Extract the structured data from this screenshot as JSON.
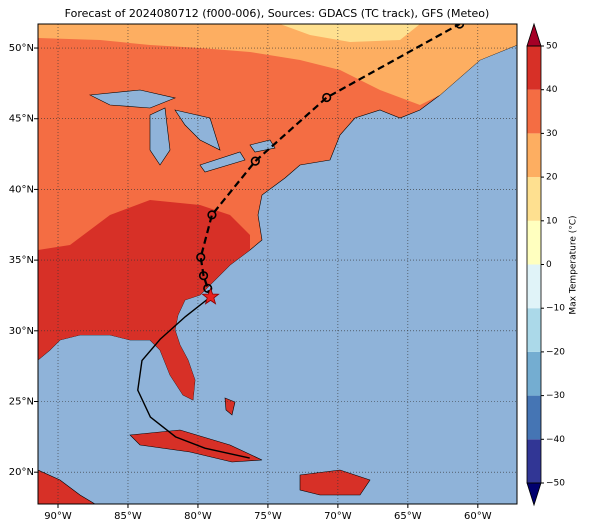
{
  "chart_data": {
    "type": "map",
    "title": "Forecast of 2024080712 (f000-006), Sources: GDACS (TC track), GFS (Meteo)",
    "xlim": [
      -91.43,
      -57.2
    ],
    "ylim": [
      17.75,
      51.7
    ],
    "xticks": [
      {
        "value": -90,
        "label": "90°W"
      },
      {
        "value": -85,
        "label": "85°W"
      },
      {
        "value": -80,
        "label": "80°W"
      },
      {
        "value": -75,
        "label": "75°W"
      },
      {
        "value": -70,
        "label": "70°W"
      },
      {
        "value": -65,
        "label": "65°W"
      },
      {
        "value": -60,
        "label": "60°W"
      }
    ],
    "yticks": [
      {
        "value": 20,
        "label": "20°N"
      },
      {
        "value": 25,
        "label": "25°N"
      },
      {
        "value": 30,
        "label": "30°N"
      },
      {
        "value": 35,
        "label": "35°N"
      },
      {
        "value": 40,
        "label": "40°N"
      },
      {
        "value": 45,
        "label": "45°N"
      },
      {
        "value": 50,
        "label": "50°N"
      }
    ],
    "grid": true,
    "current_position": {
      "lon": -79.1,
      "lat": 32.4,
      "color": "#e8211f"
    },
    "forecast_track": {
      "lon": [
        -79.1,
        -79.3,
        -79.6,
        -79.8,
        -79.0,
        -75.9,
        -70.8,
        -61.3
      ],
      "lat": [
        32.4,
        33.0,
        33.9,
        35.2,
        38.2,
        42.0,
        46.5,
        51.7
      ]
    },
    "past_track": {
      "lon": [
        -79.1,
        -80.9,
        -82.7,
        -84.0,
        -84.3,
        -83.4,
        -81.6,
        -79.5,
        -76.3
      ],
      "lat": [
        32.4,
        31.0,
        29.4,
        27.9,
        25.8,
        23.9,
        22.5,
        21.7,
        21.0
      ]
    },
    "colorbar": {
      "label": "Max Temperature (°C)",
      "lim": [
        -50,
        50
      ],
      "ticks": [
        {
          "value": -50,
          "label": "−50"
        },
        {
          "value": -40,
          "label": "−40"
        },
        {
          "value": -30,
          "label": "−30"
        },
        {
          "value": -20,
          "label": "−20"
        },
        {
          "value": -10,
          "label": "−10"
        },
        0,
        10,
        20,
        30,
        40,
        50
      ],
      "colors": [
        "#313695",
        "#4575b4",
        "#74add1",
        "#abd9e9",
        "#e0f3f8",
        "#ffffbf",
        "#fee090",
        "#fdae61",
        "#f46d43",
        "#d73027"
      ],
      "extend_colors": [
        "#00006e",
        "#a50026"
      ]
    }
  }
}
